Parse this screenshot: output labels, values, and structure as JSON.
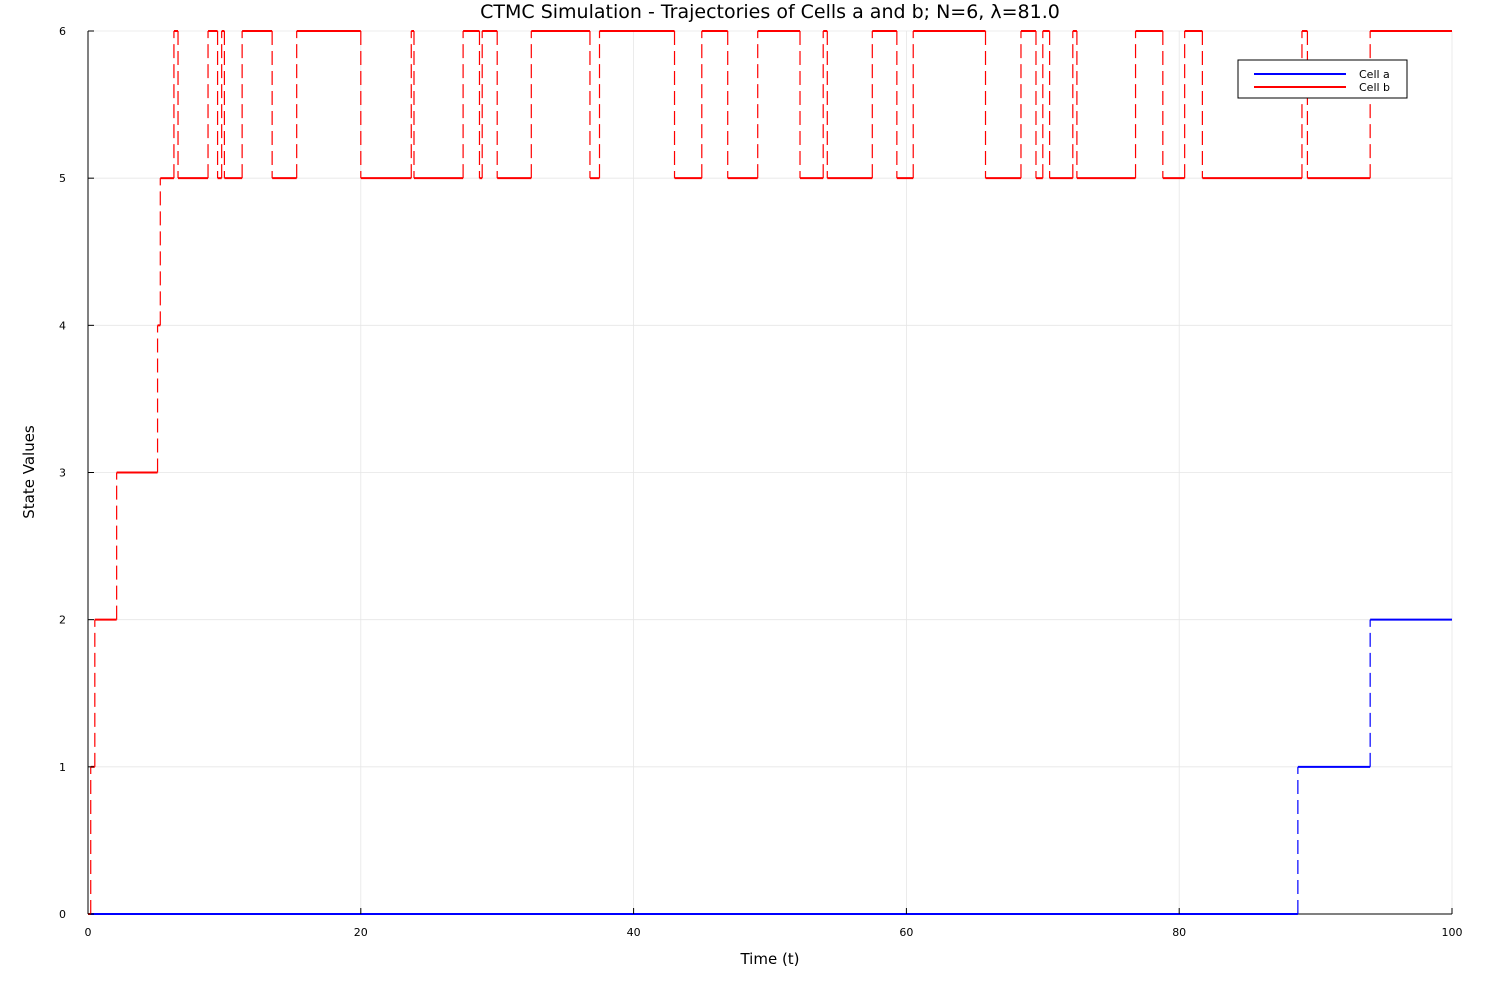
{
  "chart_data": {
    "type": "line",
    "step": true,
    "title": "CTMC Simulation - Trajectories of Cells a and b; N=6, λ=81.0",
    "xlabel": "Time (t)",
    "ylabel": "State Values",
    "xlim": [
      0,
      100
    ],
    "ylim": [
      0,
      6
    ],
    "xticks": [
      0,
      20,
      40,
      60,
      80,
      100
    ],
    "yticks": [
      0,
      1,
      2,
      3,
      4,
      5,
      6
    ],
    "grid": true,
    "legend_position": "top-right",
    "series": [
      {
        "name": "Cell a",
        "color": "#0000ff",
        "x": [
          0,
          88.7,
          94.0,
          100
        ],
        "y": [
          0,
          1,
          2,
          2
        ]
      },
      {
        "name": "Cell b",
        "color": "#ff0000",
        "x": [
          0,
          0.2,
          0.5,
          2.1,
          5.1,
          5.3,
          6.3,
          6.6,
          8.8,
          9.5,
          9.8,
          10.0,
          11.3,
          13.5,
          15.3,
          20.0,
          23.7,
          23.9,
          27.5,
          28.7,
          28.9,
          30.0,
          32.5,
          36.8,
          37.5,
          43.0,
          45.0,
          46.9,
          49.1,
          52.2,
          53.9,
          54.2,
          57.5,
          59.3,
          60.5,
          65.8,
          68.4,
          69.5,
          70.0,
          70.5,
          72.2,
          72.5,
          76.8,
          78.8,
          80.4,
          81.7,
          89.0,
          89.4,
          94.0,
          100
        ],
        "y": [
          0,
          1,
          2,
          3,
          4,
          5,
          6,
          5,
          6,
          5,
          6,
          5,
          6,
          5,
          6,
          5,
          6,
          5,
          6,
          5,
          6,
          5,
          6,
          5,
          6,
          5,
          6,
          5,
          6,
          5,
          6,
          5,
          6,
          5,
          6,
          5,
          6,
          5,
          6,
          5,
          6,
          5,
          6,
          5,
          6,
          5,
          6,
          5,
          6,
          6
        ]
      }
    ]
  }
}
